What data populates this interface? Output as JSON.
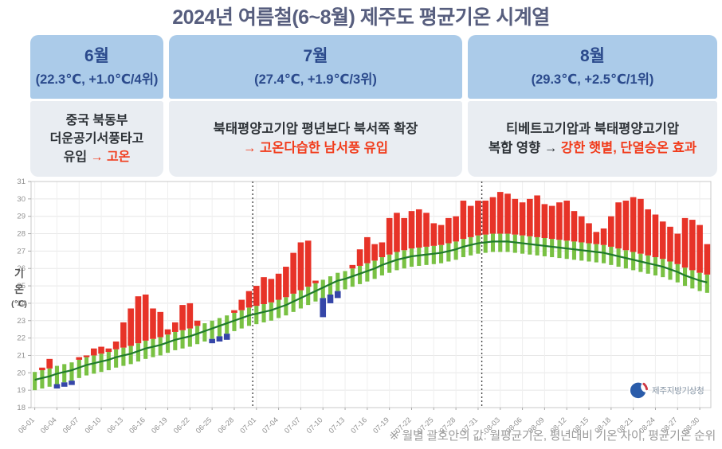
{
  "title": "2024년 여름철(6~8월) 제주도 평균기온 시계열",
  "months": [
    {
      "name": "6월",
      "stats": "(22.3℃, +1.0℃/4위)",
      "desc": [
        [
          {
            "t": "중국 북동부",
            "red": false
          }
        ],
        [
          {
            "t": "더운공기서풍타고",
            "red": false
          }
        ],
        [
          {
            "t": "유입 ",
            "red": false
          },
          {
            "t": "→ 고온",
            "red": true
          }
        ]
      ]
    },
    {
      "name": "7월",
      "stats": "(27.4℃, +1.9℃/3위)",
      "desc": [
        [
          {
            "t": "북태평양고기압 평년보다 북서쪽 확장",
            "red": false
          }
        ],
        [
          {
            "t": "→ 고온다습한 남서풍 유입",
            "red": true
          }
        ]
      ]
    },
    {
      "name": "8월",
      "stats": "(29.3℃, +2.5℃/1위)",
      "desc": [
        [
          {
            "t": "티베트고기압과 북태평양고기압",
            "red": false
          }
        ],
        [
          {
            "t": "복합 영향 → ",
            "red": false
          },
          {
            "t": "강한 햇볕, 단열승온 효과",
            "red": true
          }
        ]
      ]
    }
  ],
  "footnote": "※ 월별 괄호안의 값: 월평균기온, 평년대비 기온 차이, 평균기온 순위",
  "logo_text": "제주지방기상청",
  "y_axis_title_chars": [
    "기",
    "온",
    "(℃)"
  ],
  "colors": {
    "bar_above": "#e73328",
    "bar_below": "#3546a8",
    "band": "#79c143",
    "normal_line": "#1f7a2d",
    "grid": "#e7e7e7",
    "frame": "#c9c9c9",
    "axis_text": "#909090",
    "separator": "#444444"
  },
  "chart_data": {
    "type": "bar",
    "ylabel": "기온(℃)",
    "ylim": [
      18,
      31
    ],
    "x_tick_every": 3,
    "band_upper_offset": 0.45,
    "band_lower_offset": 0.6,
    "month_separator_indices": [
      30,
      61
    ],
    "dates": [
      "06-01",
      "06-02",
      "06-03",
      "06-04",
      "06-05",
      "06-06",
      "06-07",
      "06-08",
      "06-09",
      "06-10",
      "06-11",
      "06-12",
      "06-13",
      "06-14",
      "06-15",
      "06-16",
      "06-17",
      "06-18",
      "06-19",
      "06-20",
      "06-21",
      "06-22",
      "06-23",
      "06-24",
      "06-25",
      "06-26",
      "06-27",
      "06-28",
      "06-29",
      "06-30",
      "07-01",
      "07-02",
      "07-03",
      "07-04",
      "07-05",
      "07-06",
      "07-07",
      "07-08",
      "07-09",
      "07-10",
      "07-11",
      "07-12",
      "07-13",
      "07-14",
      "07-15",
      "07-16",
      "07-17",
      "07-18",
      "07-19",
      "07-20",
      "07-21",
      "07-22",
      "07-23",
      "07-24",
      "07-25",
      "07-26",
      "07-27",
      "07-28",
      "07-29",
      "07-30",
      "07-31",
      "08-01",
      "08-02",
      "08-03",
      "08-04",
      "08-05",
      "08-06",
      "08-07",
      "08-08",
      "08-09",
      "08-10",
      "08-11",
      "08-12",
      "08-13",
      "08-14",
      "08-15",
      "08-16",
      "08-17",
      "08-18",
      "08-19",
      "08-20",
      "08-21",
      "08-22",
      "08-23",
      "08-24",
      "08-25",
      "08-26",
      "08-27",
      "08-28",
      "08-29",
      "08-30",
      "08-31"
    ],
    "normal": [
      19.6,
      19.7,
      19.8,
      19.95,
      20.05,
      20.15,
      20.3,
      20.45,
      20.55,
      20.65,
      20.75,
      20.9,
      21.0,
      21.1,
      21.25,
      21.4,
      21.5,
      21.6,
      21.75,
      21.9,
      22.0,
      22.1,
      22.25,
      22.4,
      22.55,
      22.7,
      22.85,
      23.0,
      23.15,
      23.3,
      23.4,
      23.5,
      23.6,
      23.75,
      23.9,
      24.1,
      24.3,
      24.5,
      24.7,
      24.9,
      25.1,
      25.3,
      25.4,
      25.55,
      25.7,
      25.85,
      26.0,
      26.2,
      26.35,
      26.5,
      26.6,
      26.7,
      26.75,
      26.8,
      26.85,
      26.9,
      27.0,
      27.1,
      27.25,
      27.35,
      27.45,
      27.5,
      27.55,
      27.55,
      27.55,
      27.5,
      27.45,
      27.4,
      27.35,
      27.3,
      27.25,
      27.2,
      27.15,
      27.1,
      27.05,
      27.0,
      26.95,
      26.9,
      26.8,
      26.7,
      26.6,
      26.5,
      26.4,
      26.3,
      26.2,
      26.1,
      25.95,
      25.8,
      25.6,
      25.45,
      25.3,
      25.2
    ],
    "observed": [
      19.9,
      20.3,
      20.8,
      19.1,
      19.2,
      19.3,
      20.9,
      21.0,
      21.4,
      21.5,
      21.4,
      21.8,
      22.9,
      23.7,
      24.4,
      24.5,
      23.7,
      23.5,
      22.5,
      22.9,
      23.9,
      24.0,
      23.0,
      22.6,
      21.7,
      21.8,
      21.9,
      23.6,
      24.2,
      24.7,
      25.0,
      25.5,
      25.4,
      25.7,
      26.1,
      26.9,
      27.5,
      27.6,
      25.3,
      23.2,
      24.0,
      24.3,
      25.2,
      26.2,
      27.1,
      27.8,
      27.4,
      27.5,
      28.9,
      29.2,
      28.9,
      29.3,
      29.4,
      29.2,
      28.6,
      28.5,
      28.9,
      29.0,
      29.9,
      29.6,
      29.9,
      29.9,
      30.1,
      30.4,
      30.3,
      30.0,
      29.8,
      30.0,
      30.2,
      29.7,
      29.6,
      29.8,
      29.9,
      29.3,
      29.0,
      28.6,
      28.1,
      28.3,
      29.0,
      29.8,
      29.9,
      30.1,
      30.0,
      29.4,
      29.1,
      28.7,
      28.4,
      28.0,
      28.9,
      28.8,
      28.5,
      27.4
    ]
  }
}
